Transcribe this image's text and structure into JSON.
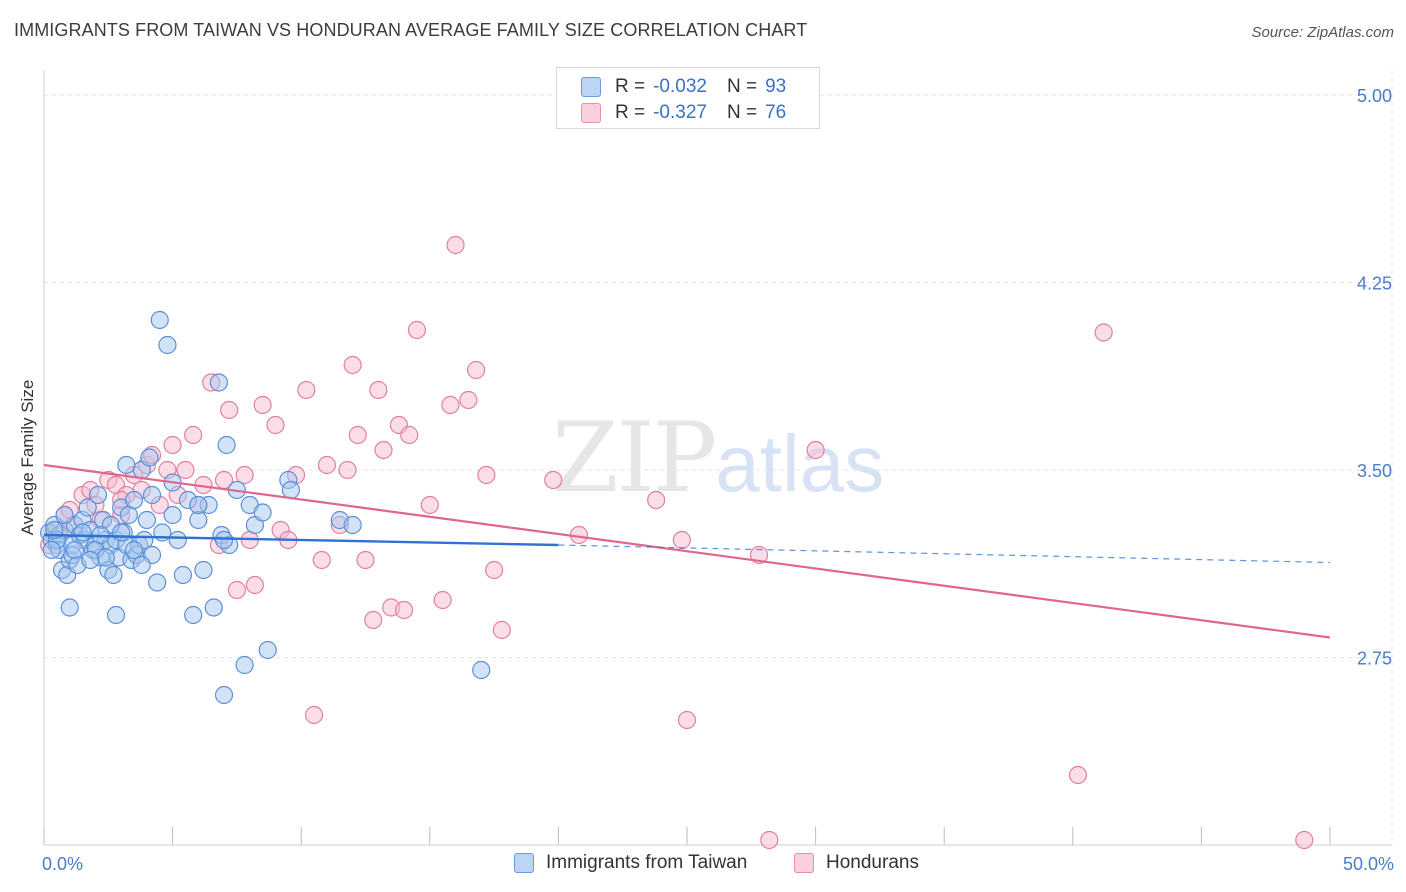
{
  "title": "IMMIGRANTS FROM TAIWAN VS HONDURAN AVERAGE FAMILY SIZE CORRELATION CHART",
  "source": "Source: ZipAtlas.com",
  "watermark": {
    "zip": "ZIP",
    "atlas": "atlas"
  },
  "legend_top": [
    {
      "r_label": "R =",
      "r_value": "-0.032",
      "n_label": "N =",
      "n_value": "93"
    },
    {
      "r_label": "R =",
      "r_value": "-0.327",
      "n_label": "N =",
      "n_value": "76"
    }
  ],
  "legend_bottom": [
    "Immigrants from Taiwan",
    "Hondurans"
  ],
  "colors": {
    "blue_fill": "#a8c8f0",
    "blue_stroke": "#5b8fd6",
    "blue_line": "#2e72d2",
    "pink_fill": "#f7bcd0",
    "pink_stroke": "#e07fa3",
    "pink_line": "#e0668f",
    "grid": "#e4e4e4",
    "tick_label": "#4a7cc9"
  },
  "chart_data": {
    "type": "scatter",
    "title": "IMMIGRANTS FROM TAIWAN VS HONDURAN AVERAGE FAMILY SIZE CORRELATION CHART",
    "xlabel": "",
    "ylabel": "Average Family Size",
    "xlim": [
      0,
      50
    ],
    "ylim": [
      2.0,
      5.1
    ],
    "x_tick_labels": [
      "0.0%",
      "50.0%"
    ],
    "y_ticks": [
      2.75,
      3.5,
      4.25,
      5.0
    ],
    "y_tick_labels": [
      "2.75",
      "3.50",
      "4.25",
      "5.00"
    ],
    "grid": true,
    "series": [
      {
        "name": "Immigrants from Taiwan",
        "trend": {
          "x": [
            0,
            20
          ],
          "y": [
            3.24,
            3.2
          ],
          "dashed_to": [
            50,
            3.13
          ]
        },
        "points": [
          [
            0.2,
            3.25
          ],
          [
            0.3,
            3.22
          ],
          [
            0.4,
            3.28
          ],
          [
            0.5,
            3.2
          ],
          [
            0.6,
            3.24
          ],
          [
            0.6,
            3.18
          ],
          [
            0.7,
            3.1
          ],
          [
            0.8,
            3.26
          ],
          [
            0.9,
            3.08
          ],
          [
            1.0,
            3.14
          ],
          [
            1.1,
            3.2
          ],
          [
            1.1,
            3.16
          ],
          [
            1.2,
            3.28
          ],
          [
            1.3,
            3.12
          ],
          [
            1.4,
            3.24
          ],
          [
            1.5,
            3.3
          ],
          [
            1.6,
            3.22
          ],
          [
            1.7,
            3.35
          ],
          [
            1.8,
            3.26
          ],
          [
            1.9,
            3.18
          ],
          [
            2.0,
            3.2
          ],
          [
            2.1,
            3.4
          ],
          [
            2.2,
            3.15
          ],
          [
            2.3,
            3.3
          ],
          [
            2.4,
            3.22
          ],
          [
            2.5,
            3.1
          ],
          [
            2.6,
            3.2
          ],
          [
            2.7,
            3.08
          ],
          [
            2.8,
            3.22
          ],
          [
            2.9,
            3.15
          ],
          [
            3.0,
            3.35
          ],
          [
            3.1,
            3.25
          ],
          [
            3.2,
            3.2
          ],
          [
            3.3,
            3.32
          ],
          [
            3.4,
            3.14
          ],
          [
            3.5,
            3.38
          ],
          [
            3.6,
            3.16
          ],
          [
            3.7,
            3.2
          ],
          [
            3.8,
            3.5
          ],
          [
            3.9,
            3.22
          ],
          [
            4.0,
            3.3
          ],
          [
            4.1,
            3.55
          ],
          [
            4.2,
            3.16
          ],
          [
            4.4,
            3.05
          ],
          [
            4.6,
            3.25
          ],
          [
            4.8,
            4.0
          ],
          [
            5.0,
            3.45
          ],
          [
            5.2,
            3.22
          ],
          [
            5.4,
            3.08
          ],
          [
            5.6,
            3.38
          ],
          [
            5.8,
            2.92
          ],
          [
            6.0,
            3.3
          ],
          [
            6.2,
            3.1
          ],
          [
            6.4,
            3.36
          ],
          [
            6.6,
            2.95
          ],
          [
            6.8,
            3.85
          ],
          [
            6.9,
            3.24
          ],
          [
            7.0,
            2.6
          ],
          [
            7.1,
            3.6
          ],
          [
            7.2,
            3.2
          ],
          [
            7.5,
            3.42
          ],
          [
            7.8,
            2.72
          ],
          [
            8.0,
            3.36
          ],
          [
            8.2,
            3.28
          ],
          [
            8.5,
            3.33
          ],
          [
            8.7,
            2.78
          ],
          [
            9.5,
            3.46
          ],
          [
            9.6,
            3.42
          ],
          [
            11.5,
            3.3
          ],
          [
            12.0,
            3.28
          ],
          [
            17.0,
            2.7
          ],
          [
            4.5,
            4.1
          ],
          [
            3.2,
            3.52
          ],
          [
            1.0,
            2.95
          ],
          [
            2.8,
            2.92
          ],
          [
            5.0,
            3.32
          ],
          [
            0.5,
            3.22
          ],
          [
            0.3,
            3.18
          ],
          [
            1.5,
            3.25
          ],
          [
            2.0,
            3.18
          ],
          [
            2.6,
            3.28
          ],
          [
            3.5,
            3.18
          ],
          [
            4.2,
            3.4
          ],
          [
            6.0,
            3.36
          ],
          [
            7.0,
            3.22
          ],
          [
            0.8,
            3.32
          ],
          [
            1.2,
            3.18
          ],
          [
            2.4,
            3.15
          ],
          [
            3.0,
            3.25
          ],
          [
            3.8,
            3.12
          ],
          [
            0.4,
            3.26
          ],
          [
            1.8,
            3.14
          ],
          [
            2.2,
            3.24
          ]
        ]
      },
      {
        "name": "Hondurans",
        "trend": {
          "x": [
            0,
            50
          ],
          "y": [
            3.52,
            2.83
          ]
        },
        "points": [
          [
            0.2,
            3.2
          ],
          [
            0.5,
            3.26
          ],
          [
            0.8,
            3.32
          ],
          [
            1.0,
            3.34
          ],
          [
            1.2,
            3.28
          ],
          [
            1.5,
            3.4
          ],
          [
            1.8,
            3.42
          ],
          [
            2.0,
            3.36
          ],
          [
            2.2,
            3.3
          ],
          [
            2.5,
            3.46
          ],
          [
            2.8,
            3.44
          ],
          [
            3.0,
            3.32
          ],
          [
            3.2,
            3.4
          ],
          [
            3.5,
            3.48
          ],
          [
            3.8,
            3.42
          ],
          [
            4.0,
            3.52
          ],
          [
            4.2,
            3.56
          ],
          [
            4.5,
            3.36
          ],
          [
            4.8,
            3.5
          ],
          [
            5.0,
            3.6
          ],
          [
            5.2,
            3.4
          ],
          [
            5.5,
            3.5
          ],
          [
            5.8,
            3.64
          ],
          [
            6.0,
            3.36
          ],
          [
            6.2,
            3.44
          ],
          [
            6.5,
            3.85
          ],
          [
            6.8,
            3.2
          ],
          [
            7.0,
            3.46
          ],
          [
            7.2,
            3.74
          ],
          [
            7.5,
            3.02
          ],
          [
            7.8,
            3.48
          ],
          [
            8.0,
            3.22
          ],
          [
            8.2,
            3.04
          ],
          [
            8.5,
            3.76
          ],
          [
            9.0,
            3.68
          ],
          [
            9.2,
            3.26
          ],
          [
            9.5,
            3.22
          ],
          [
            9.8,
            3.48
          ],
          [
            10.2,
            3.82
          ],
          [
            10.5,
            2.52
          ],
          [
            10.8,
            3.14
          ],
          [
            11.0,
            3.52
          ],
          [
            11.5,
            3.28
          ],
          [
            11.8,
            3.5
          ],
          [
            12.0,
            3.92
          ],
          [
            12.2,
            3.64
          ],
          [
            12.5,
            3.14
          ],
          [
            12.8,
            2.9
          ],
          [
            13.0,
            3.82
          ],
          [
            13.2,
            3.58
          ],
          [
            13.5,
            2.95
          ],
          [
            13.8,
            3.68
          ],
          [
            14.0,
            2.94
          ],
          [
            14.2,
            3.64
          ],
          [
            14.5,
            4.06
          ],
          [
            15.0,
            3.36
          ],
          [
            15.5,
            2.98
          ],
          [
            15.8,
            3.76
          ],
          [
            16.0,
            4.4
          ],
          [
            16.5,
            3.78
          ],
          [
            16.8,
            3.9
          ],
          [
            17.2,
            3.48
          ],
          [
            17.5,
            3.1
          ],
          [
            17.8,
            2.86
          ],
          [
            19.8,
            3.46
          ],
          [
            20.8,
            3.24
          ],
          [
            23.8,
            3.38
          ],
          [
            24.8,
            3.22
          ],
          [
            25.0,
            2.5
          ],
          [
            27.8,
            3.16
          ],
          [
            28.2,
            2.02
          ],
          [
            30.0,
            3.58
          ],
          [
            40.2,
            2.28
          ],
          [
            41.2,
            4.05
          ],
          [
            49.0,
            2.02
          ],
          [
            3.0,
            3.38
          ]
        ]
      }
    ]
  }
}
